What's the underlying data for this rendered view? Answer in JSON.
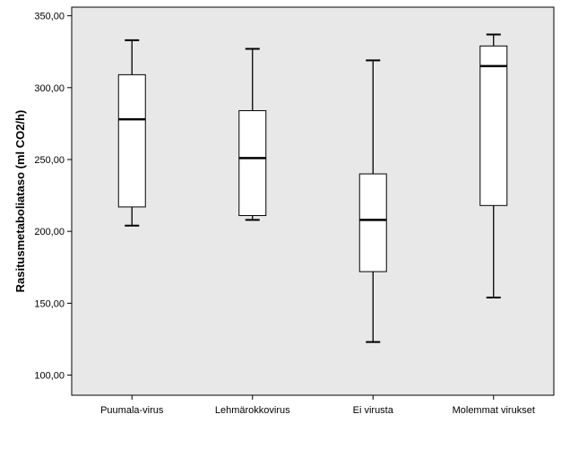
{
  "chart_data": {
    "type": "boxplot",
    "title": "",
    "xlabel": "",
    "ylabel": "Rasitusmetaboliataso (ml CO2/h)",
    "ylim": [
      86,
      356
    ],
    "yticks": [
      100,
      150,
      200,
      250,
      300,
      350
    ],
    "ytick_labels": [
      "100,00",
      "150,00",
      "200,00",
      "250,00",
      "300,00",
      "350,00"
    ],
    "grid": false,
    "categories": [
      "Puumala-virus",
      "Lehmärokkovirus",
      "Ei virusta",
      "Molemmat virukset"
    ],
    "boxes": [
      {
        "whisker_low": 204,
        "q1": 217,
        "median": 278,
        "q3": 309,
        "whisker_high": 333
      },
      {
        "whisker_low": 208,
        "q1": 211,
        "median": 251,
        "q3": 284,
        "whisker_high": 327
      },
      {
        "whisker_low": 123,
        "q1": 172,
        "median": 208,
        "q3": 240,
        "whisker_high": 319
      },
      {
        "whisker_low": 154,
        "q1": 218,
        "median": 315,
        "q3": 329,
        "whisker_high": 337
      }
    ],
    "colors": {
      "plot_background": "#e8e8e8",
      "box_fill": "#ffffff",
      "stroke": "#000000"
    }
  }
}
